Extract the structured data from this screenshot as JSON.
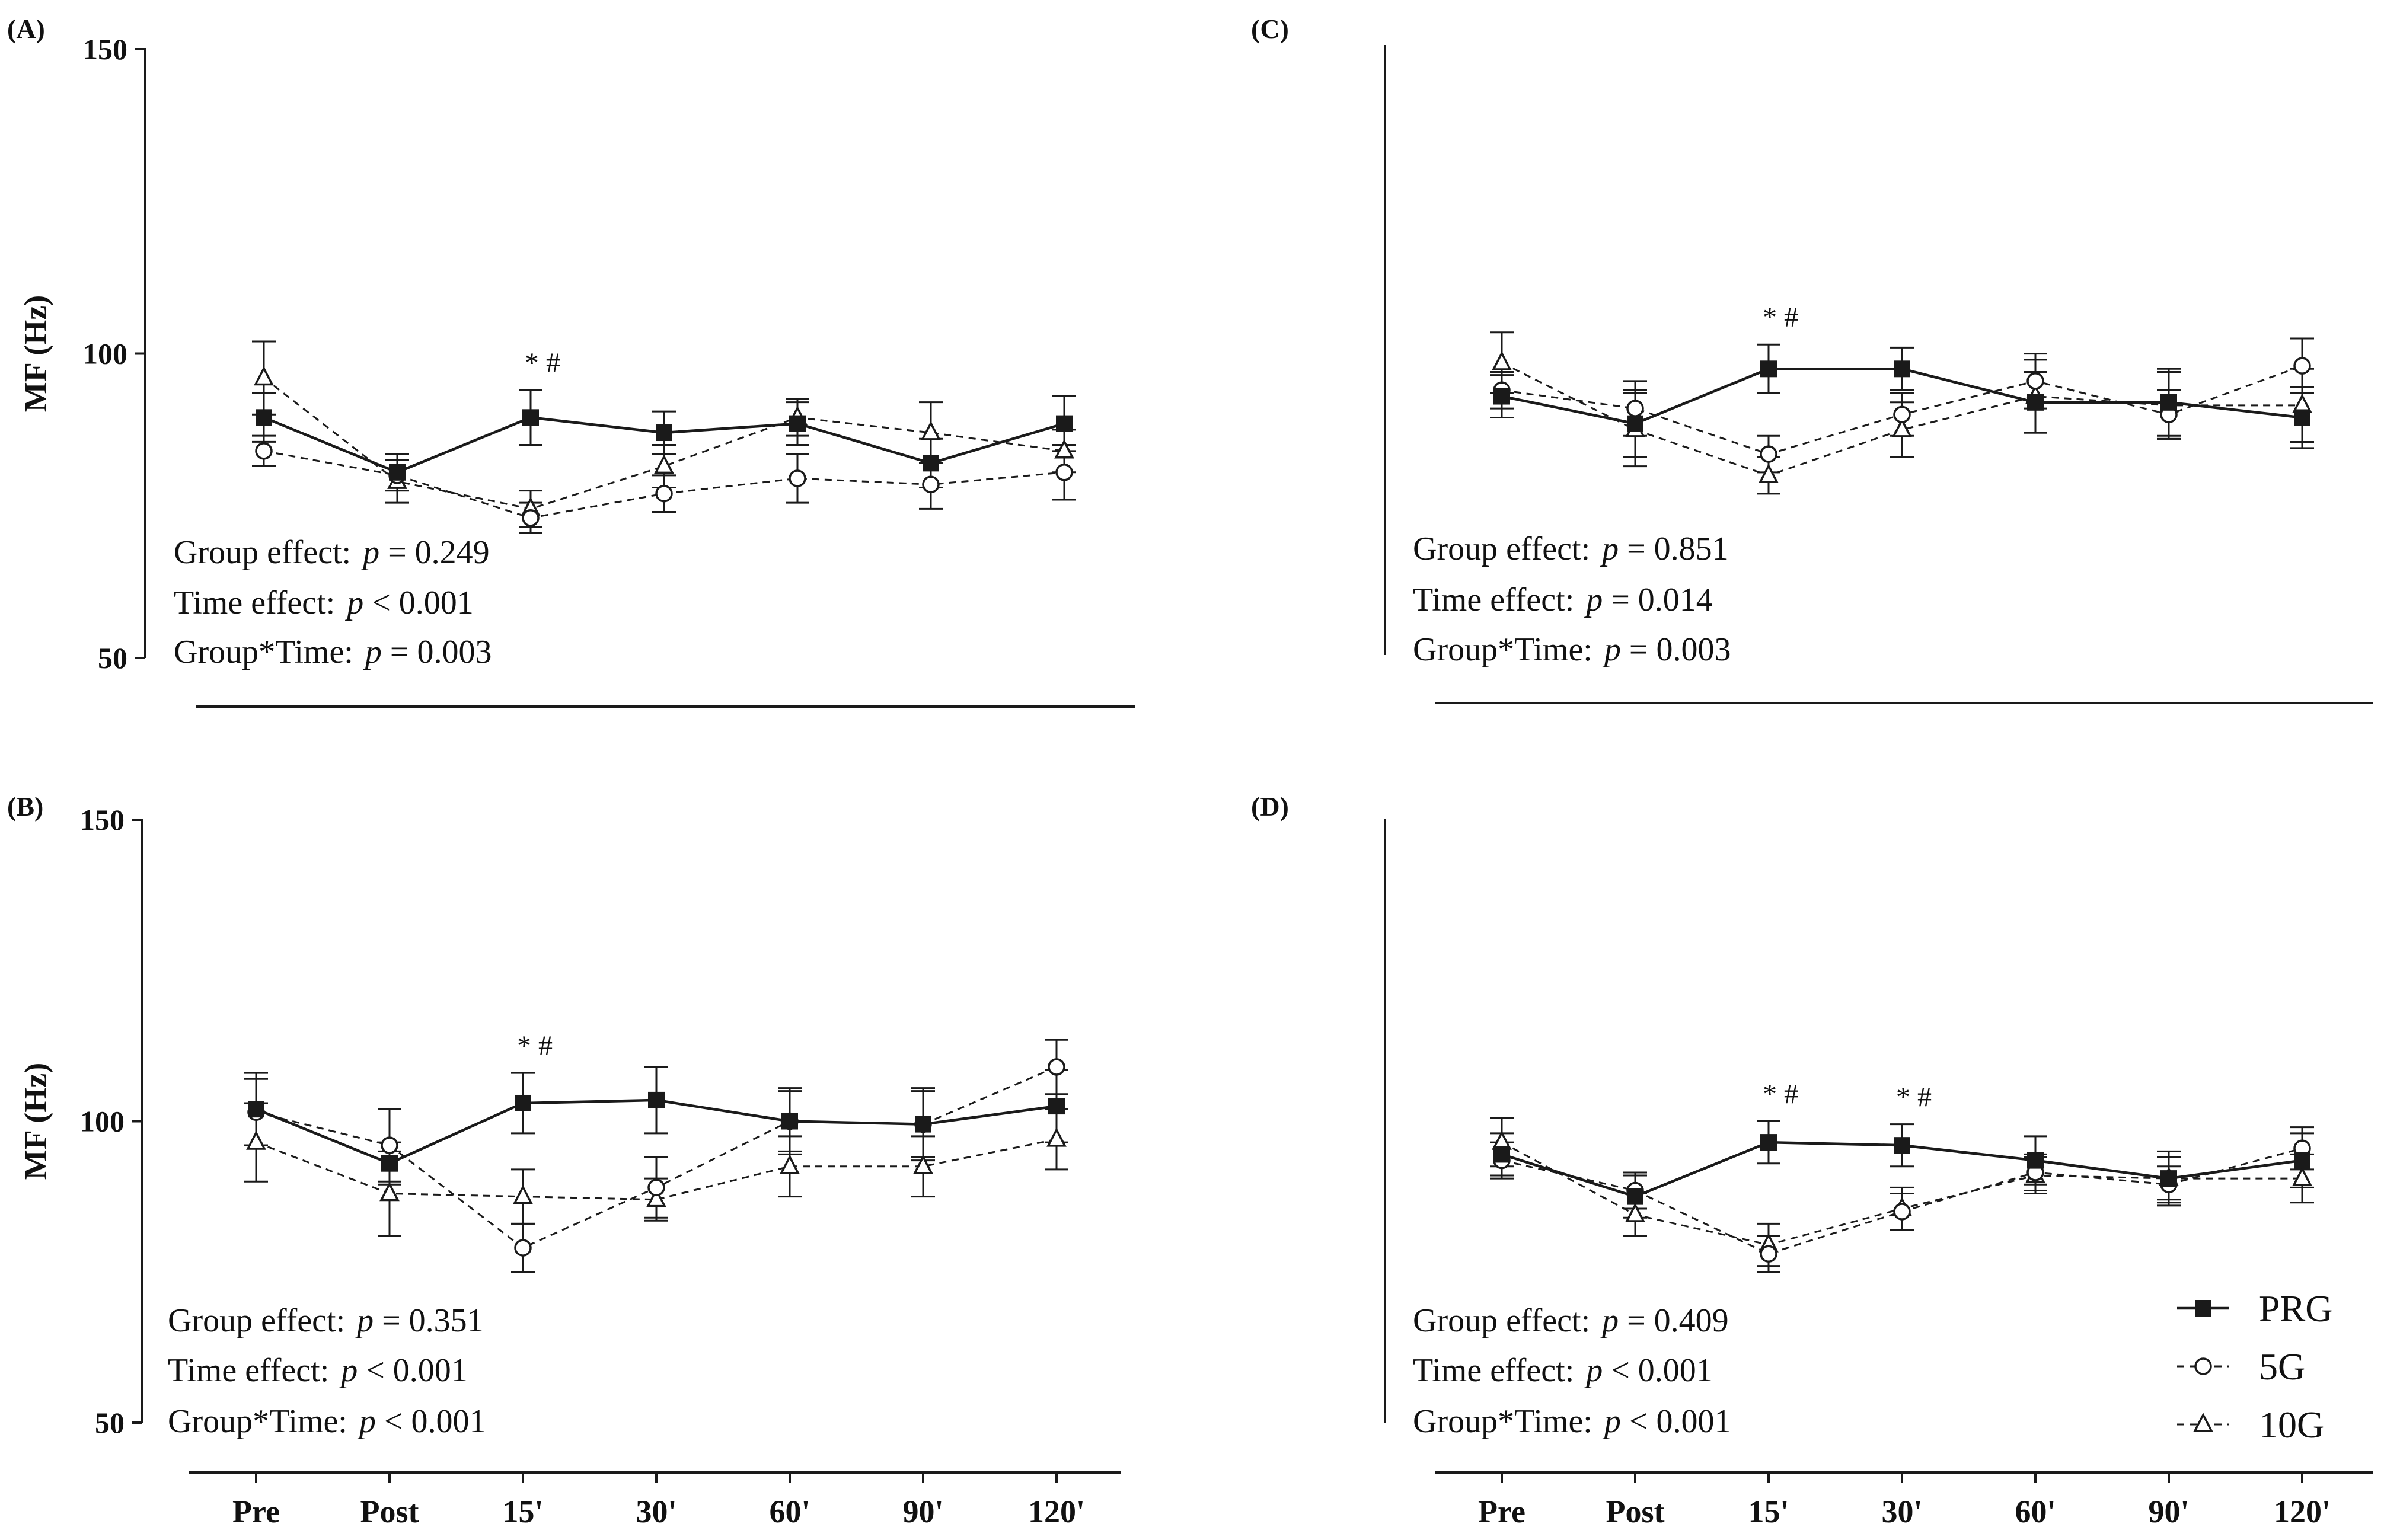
{
  "x_categories": [
    "Pre",
    "Post",
    "15'",
    "30'",
    "60'",
    "90'",
    "120'"
  ],
  "ylabel": "MF (Hz)",
  "ylim": [
    50,
    150
  ],
  "yticks": [
    50,
    100,
    150
  ],
  "legend": [
    {
      "name": "PRG",
      "marker": "filled-square",
      "line": "solid"
    },
    {
      "name": "5G",
      "marker": "open-circle",
      "line": "dashed"
    },
    {
      "name": "10G",
      "marker": "open-triangle",
      "line": "dashed"
    }
  ],
  "colors": {
    "line": "#1a1a1a",
    "background": "#ffffff"
  },
  "chart_data": [
    {
      "id": "A",
      "label": "(A)",
      "type": "line",
      "show_y_axis": true,
      "show_y_ticks": true,
      "show_x_ticks": false,
      "ylabel": "MF (Hz)",
      "ylim": [
        50,
        150
      ],
      "categories": [
        "Pre",
        "Post",
        "15'",
        "30'",
        "60'",
        "90'",
        "120'"
      ],
      "series": [
        {
          "name": "PRG",
          "values": [
            89.5,
            80.5,
            89.5,
            87.0,
            88.5,
            82.0,
            88.5
          ],
          "errors": [
            4.0,
            3.0,
            4.5,
            3.5,
            3.5,
            4.0,
            4.5
          ]
        },
        {
          "name": "5G",
          "values": [
            84.0,
            80.0,
            73.0,
            77.0,
            79.5,
            78.5,
            80.5
          ],
          "errors": [
            2.5,
            2.5,
            2.5,
            3.0,
            4.0,
            4.0,
            4.5
          ]
        },
        {
          "name": "10G",
          "values": [
            96.0,
            79.0,
            74.5,
            81.5,
            89.5,
            87.0,
            84.0
          ],
          "errors": [
            6.0,
            3.5,
            3.0,
            3.5,
            3.0,
            5.0,
            3.5
          ]
        }
      ],
      "significance": [
        {
          "category": "15'",
          "text": "* #"
        }
      ],
      "stats": [
        {
          "label": "Group effect:",
          "p": "p",
          "value": "= 0.249"
        },
        {
          "label": "Time effect:",
          "p": "p",
          "value": "< 0.001"
        },
        {
          "label": "Group*Time:",
          "p": "p",
          "value": "= 0.003"
        }
      ]
    },
    {
      "id": "C",
      "label": "(C)",
      "type": "line",
      "show_y_axis": true,
      "show_y_ticks": false,
      "show_x_ticks": false,
      "ylabel": "",
      "ylim": [
        50,
        150
      ],
      "categories": [
        "Pre",
        "Post",
        "15'",
        "30'",
        "60'",
        "90'",
        "120'"
      ],
      "series": [
        {
          "name": "PRG",
          "values": [
            92.5,
            88.0,
            97.0,
            97.0,
            91.5,
            91.5,
            89.0
          ],
          "errors": [
            3.5,
            5.5,
            4.0,
            3.5,
            5.0,
            5.5,
            5.0
          ]
        },
        {
          "name": "5G",
          "values": [
            93.5,
            90.5,
            83.0,
            89.5,
            95.0,
            89.5,
            97.5
          ],
          "errors": [
            3.0,
            4.5,
            3.0,
            3.5,
            4.5,
            4.0,
            4.5
          ]
        },
        {
          "name": "10G",
          "values": [
            98.0,
            87.0,
            79.5,
            87.0,
            92.5,
            91.0,
            91.0
          ],
          "errors": [
            5.0,
            6.0,
            3.0,
            4.5,
            6.0,
            5.5,
            6.0
          ]
        }
      ],
      "significance": [
        {
          "category": "15'",
          "text": "* #"
        }
      ],
      "stats": [
        {
          "label": "Group effect:",
          "p": "p",
          "value": "= 0.851"
        },
        {
          "label": "Time effect:",
          "p": "p",
          "value": "= 0.014"
        },
        {
          "label": "Group*Time:",
          "p": "p",
          "value": "= 0.003"
        }
      ]
    },
    {
      "id": "B",
      "label": "(B)",
      "type": "line",
      "show_y_axis": true,
      "show_y_ticks": true,
      "show_x_ticks": true,
      "ylabel": "MF (Hz)",
      "ylim": [
        50,
        150
      ],
      "categories": [
        "Pre",
        "Post",
        "15'",
        "30'",
        "60'",
        "90'",
        "120'"
      ],
      "series": [
        {
          "name": "PRG",
          "values": [
            102.0,
            93.0,
            103.0,
            103.5,
            100.0,
            99.5,
            102.5
          ],
          "errors": [
            6.0,
            3.5,
            5.0,
            5.5,
            5.5,
            6.0,
            6.0
          ]
        },
        {
          "name": "5G",
          "values": [
            101.5,
            96.0,
            79.0,
            89.0,
            100.0,
            99.5,
            109.0
          ],
          "errors": [
            5.5,
            6.0,
            4.0,
            5.0,
            5.0,
            5.5,
            4.5
          ]
        },
        {
          "name": "10G",
          "values": [
            96.5,
            88.0,
            87.5,
            87.0,
            92.5,
            92.5,
            97.0
          ],
          "errors": [
            6.5,
            7.0,
            4.5,
            3.5,
            5.0,
            5.0,
            5.0
          ]
        }
      ],
      "significance": [
        {
          "category": "15'",
          "text": "* #"
        }
      ],
      "stats": [
        {
          "label": "Group effect:",
          "p": "p",
          "value": "= 0.351"
        },
        {
          "label": "Time effect:",
          "p": "p",
          "value": "< 0.001"
        },
        {
          "label": "Group*Time:",
          "p": "p",
          "value": "< 0.001"
        }
      ]
    },
    {
      "id": "D",
      "label": "(D)",
      "type": "line",
      "show_y_axis": true,
      "show_y_ticks": false,
      "show_x_ticks": true,
      "ylabel": "",
      "ylim": [
        50,
        150
      ],
      "categories": [
        "Pre",
        "Post",
        "15'",
        "30'",
        "60'",
        "90'",
        "120'"
      ],
      "series": [
        {
          "name": "PRG",
          "values": [
            94.5,
            87.5,
            96.5,
            96.0,
            93.5,
            90.5,
            93.5
          ],
          "errors": [
            3.5,
            3.5,
            3.5,
            3.5,
            4.0,
            4.5,
            4.5
          ]
        },
        {
          "name": "5G",
          "values": [
            93.5,
            88.5,
            78.0,
            85.0,
            91.5,
            89.5,
            95.5
          ],
          "errors": [
            3.0,
            3.0,
            3.0,
            3.0,
            3.0,
            3.0,
            3.5
          ]
        },
        {
          "name": "10G",
          "values": [
            96.5,
            84.5,
            79.5,
            85.5,
            91.0,
            90.5,
            90.5
          ],
          "errors": [
            4.0,
            3.5,
            3.5,
            3.5,
            3.0,
            3.5,
            4.0
          ]
        }
      ],
      "significance": [
        {
          "category": "15'",
          "text": "* #"
        },
        {
          "category": "30'",
          "text": "* #"
        }
      ],
      "stats": [
        {
          "label": "Group effect:",
          "p": "p",
          "value": "= 0.409"
        },
        {
          "label": "Time effect:",
          "p": "p",
          "value": "< 0.001"
        },
        {
          "label": "Group*Time:",
          "p": "p",
          "value": "< 0.001"
        }
      ]
    }
  ]
}
